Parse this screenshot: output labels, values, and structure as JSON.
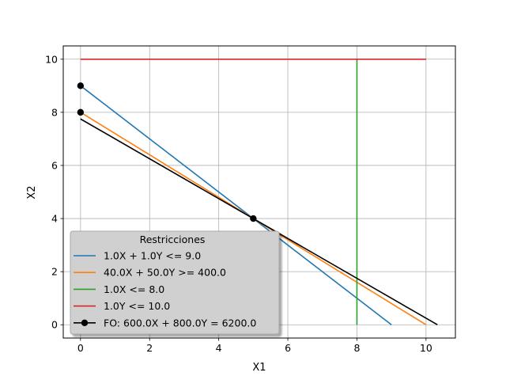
{
  "chart_data": {
    "type": "line",
    "title": "",
    "xlabel": "X1",
    "ylabel": "X2",
    "xlim": [
      -0.5,
      10.85
    ],
    "ylim": [
      -0.5,
      10.5
    ],
    "xticks": [
      0,
      2,
      4,
      6,
      8,
      10
    ],
    "yticks": [
      0,
      2,
      4,
      6,
      8,
      10
    ],
    "grid": true,
    "legend": {
      "title": "Restricciones",
      "placement": "lower-left"
    },
    "series": [
      {
        "name": "1.0X + 1.0Y <= 9.0",
        "color": "#1f77b4",
        "marker": false,
        "points": [
          [
            0,
            9
          ],
          [
            9,
            0
          ]
        ]
      },
      {
        "name": "40.0X + 50.0Y >= 400.0",
        "color": "#ff7f0e",
        "marker": false,
        "points": [
          [
            0,
            8
          ],
          [
            10,
            0
          ]
        ]
      },
      {
        "name": "1.0X <= 8.0",
        "color": "#2ca02c",
        "marker": false,
        "points": [
          [
            8,
            0
          ],
          [
            8,
            10
          ]
        ]
      },
      {
        "name": "1.0Y <= 10.0",
        "color": "#d62728",
        "marker": false,
        "points": [
          [
            0,
            10
          ],
          [
            10,
            10
          ]
        ]
      },
      {
        "name": "FO: 600.0X + 800.0Y = 6200.0",
        "color": "#000000",
        "marker": false,
        "points": [
          [
            0,
            7.75
          ],
          [
            10.33,
            0
          ]
        ]
      }
    ],
    "points": [
      {
        "x": 0,
        "y": 9,
        "color": "#000000"
      },
      {
        "x": 0,
        "y": 8,
        "color": "#000000"
      },
      {
        "x": 5,
        "y": 4,
        "color": "#000000"
      }
    ]
  }
}
